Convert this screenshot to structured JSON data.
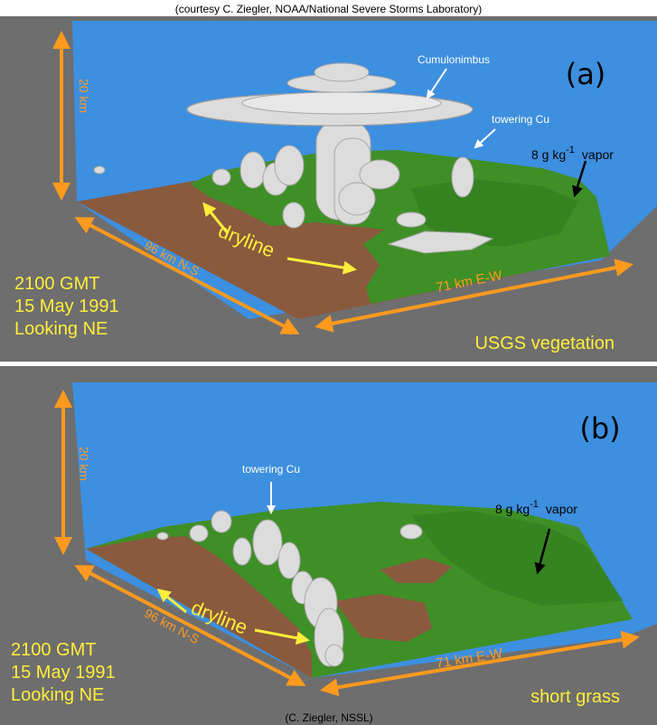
{
  "credits": {
    "top": "(courtesy C. Ziegler, NOAA/National Severe Storms Laboratory)",
    "bottom": "(C. Ziegler, NSSL)"
  },
  "colors": {
    "sky": "#3d8fe0",
    "ground": "#8a5a3e",
    "vegetation": "#3f8f27",
    "cloud": "#dcdcdc",
    "arrow_orange": "#ff9a1e",
    "label_yellow": "#ffee3a",
    "panel_bg": "#6e6e6e"
  },
  "panels": [
    {
      "letter": "(a)",
      "height_label": "20 km",
      "ns_label": "96 km N-S",
      "ew_label": "71 km E-W",
      "dryline_label": "dryline",
      "time": "2100 GMT",
      "date": "15 May 1991",
      "view": "Looking NE",
      "surface": "USGS vegetation",
      "vapor_prefix": "8 g kg",
      "vapor_exp": "-1",
      "vapor_suffix": "vapor",
      "annotations": [
        "Cumulonimbus",
        "towering Cu"
      ]
    },
    {
      "letter": "(b)",
      "height_label": "20 km",
      "ns_label": "96 km N-S",
      "ew_label": "71 km E-W",
      "dryline_label": "dryline",
      "time": "2100 GMT",
      "date": "15 May 1991",
      "view": "Looking NE",
      "surface": "short grass",
      "vapor_prefix": "8 g kg",
      "vapor_exp": "-1",
      "vapor_suffix": "vapor",
      "annotations": [
        "towering Cu"
      ]
    }
  ]
}
